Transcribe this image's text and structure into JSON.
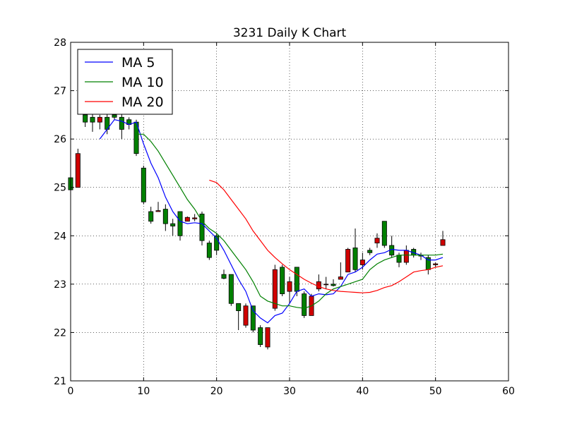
{
  "chart_data": {
    "type": "candlestick",
    "title": "3231 Daily K Chart",
    "xlabel": "",
    "ylabel": "",
    "xlim": [
      0,
      60
    ],
    "ylim": [
      21,
      28
    ],
    "x_ticks": [
      0,
      10,
      20,
      30,
      40,
      50,
      60
    ],
    "y_ticks": [
      21,
      22,
      23,
      24,
      25,
      26,
      27,
      28
    ],
    "grid": true,
    "legend_position": "top-left",
    "colors": {
      "up": "#d00000",
      "down": "#008000"
    },
    "candles": [
      {
        "x": 0,
        "open": 25.2,
        "high": 25.2,
        "low": 24.95,
        "close": 24.95
      },
      {
        "x": 1,
        "open": 25.0,
        "high": 25.8,
        "low": 25.0,
        "close": 25.7
      },
      {
        "x": 2,
        "open": 26.5,
        "high": 26.55,
        "low": 26.25,
        "close": 26.35
      },
      {
        "x": 3,
        "open": 26.45,
        "high": 26.6,
        "low": 26.15,
        "close": 26.35
      },
      {
        "x": 4,
        "open": 26.35,
        "high": 26.5,
        "low": 26.2,
        "close": 26.45
      },
      {
        "x": 5,
        "open": 26.45,
        "high": 26.55,
        "low": 26.1,
        "close": 26.2
      },
      {
        "x": 6,
        "open": 26.5,
        "high": 26.6,
        "low": 26.4,
        "close": 26.45
      },
      {
        "x": 7,
        "open": 26.45,
        "high": 26.55,
        "low": 26.0,
        "close": 26.2
      },
      {
        "x": 8,
        "open": 26.4,
        "high": 26.45,
        "low": 26.2,
        "close": 26.3
      },
      {
        "x": 9,
        "open": 26.35,
        "high": 26.4,
        "low": 25.65,
        "close": 25.7
      },
      {
        "x": 10,
        "open": 25.4,
        "high": 25.45,
        "low": 24.65,
        "close": 24.7
      },
      {
        "x": 11,
        "open": 24.5,
        "high": 24.6,
        "low": 24.25,
        "close": 24.3
      },
      {
        "x": 12,
        "open": 24.5,
        "high": 24.7,
        "low": 24.5,
        "close": 24.52
      },
      {
        "x": 13,
        "open": 24.55,
        "high": 24.65,
        "low": 24.1,
        "close": 24.25
      },
      {
        "x": 14,
        "open": 24.25,
        "high": 24.35,
        "low": 24.0,
        "close": 24.2
      },
      {
        "x": 15,
        "open": 24.5,
        "high": 24.5,
        "low": 23.9,
        "close": 24.0
      },
      {
        "x": 16,
        "open": 24.3,
        "high": 24.4,
        "low": 24.3,
        "close": 24.38
      },
      {
        "x": 17,
        "open": 24.35,
        "high": 24.45,
        "low": 24.3,
        "close": 24.37
      },
      {
        "x": 18,
        "open": 24.45,
        "high": 24.5,
        "low": 23.8,
        "close": 23.9
      },
      {
        "x": 19,
        "open": 23.85,
        "high": 23.9,
        "low": 23.5,
        "close": 23.55
      },
      {
        "x": 20,
        "open": 24.0,
        "high": 24.05,
        "low": 23.6,
        "close": 23.7
      },
      {
        "x": 21,
        "open": 23.2,
        "high": 23.3,
        "low": 23.1,
        "close": 23.12
      },
      {
        "x": 22,
        "open": 23.2,
        "high": 23.2,
        "low": 22.55,
        "close": 22.6
      },
      {
        "x": 23,
        "open": 22.6,
        "high": 22.6,
        "low": 22.05,
        "close": 22.45
      },
      {
        "x": 24,
        "open": 22.15,
        "high": 22.6,
        "low": 22.1,
        "close": 22.55
      },
      {
        "x": 25,
        "open": 22.55,
        "high": 22.55,
        "low": 22.0,
        "close": 22.05
      },
      {
        "x": 26,
        "open": 22.1,
        "high": 22.15,
        "low": 21.7,
        "close": 21.75
      },
      {
        "x": 27,
        "open": 21.7,
        "high": 22.1,
        "low": 21.65,
        "close": 22.1
      },
      {
        "x": 28,
        "open": 22.5,
        "high": 23.4,
        "low": 22.45,
        "close": 23.3
      },
      {
        "x": 29,
        "open": 23.35,
        "high": 23.4,
        "low": 22.75,
        "close": 22.8
      },
      {
        "x": 30,
        "open": 22.85,
        "high": 23.15,
        "low": 22.6,
        "close": 23.05
      },
      {
        "x": 31,
        "open": 23.35,
        "high": 23.35,
        "low": 22.75,
        "close": 22.85
      },
      {
        "x": 32,
        "open": 22.8,
        "high": 22.85,
        "low": 22.3,
        "close": 22.35
      },
      {
        "x": 33,
        "open": 22.35,
        "high": 22.8,
        "low": 22.35,
        "close": 22.75
      },
      {
        "x": 34,
        "open": 22.9,
        "high": 23.2,
        "low": 22.85,
        "close": 23.05
      },
      {
        "x": 35,
        "open": 23.0,
        "high": 23.15,
        "low": 22.9,
        "close": 23.0
      },
      {
        "x": 36,
        "open": 23.0,
        "high": 23.1,
        "low": 22.95,
        "close": 22.97
      },
      {
        "x": 37,
        "open": 23.1,
        "high": 23.45,
        "low": 23.1,
        "close": 23.15
      },
      {
        "x": 38,
        "open": 23.25,
        "high": 23.75,
        "low": 23.25,
        "close": 23.72
      },
      {
        "x": 39,
        "open": 23.75,
        "high": 24.15,
        "low": 23.25,
        "close": 23.3
      },
      {
        "x": 40,
        "open": 23.4,
        "high": 23.65,
        "low": 23.3,
        "close": 23.5
      },
      {
        "x": 41,
        "open": 23.7,
        "high": 23.75,
        "low": 23.6,
        "close": 23.65
      },
      {
        "x": 42,
        "open": 23.85,
        "high": 24.05,
        "low": 23.75,
        "close": 23.95
      },
      {
        "x": 43,
        "open": 24.3,
        "high": 24.3,
        "low": 23.75,
        "close": 23.8
      },
      {
        "x": 44,
        "open": 23.8,
        "high": 24.0,
        "low": 23.55,
        "close": 23.6
      },
      {
        "x": 45,
        "open": 23.6,
        "high": 23.65,
        "low": 23.35,
        "close": 23.45
      },
      {
        "x": 46,
        "open": 23.45,
        "high": 23.8,
        "low": 23.4,
        "close": 23.7
      },
      {
        "x": 47,
        "open": 23.72,
        "high": 23.75,
        "low": 23.55,
        "close": 23.6
      },
      {
        "x": 48,
        "open": 23.6,
        "high": 23.65,
        "low": 23.5,
        "close": 23.58
      },
      {
        "x": 49,
        "open": 23.55,
        "high": 23.6,
        "low": 23.2,
        "close": 23.3
      },
      {
        "x": 50,
        "open": 23.4,
        "high": 23.45,
        "low": 23.35,
        "close": 23.42
      },
      {
        "x": 51,
        "open": 23.8,
        "high": 24.1,
        "low": 23.8,
        "close": 23.92
      }
    ],
    "series": [
      {
        "name": "MA 5",
        "color": "#0000ff",
        "x": [
          4,
          5,
          6,
          7,
          8,
          9,
          10,
          11,
          12,
          13,
          14,
          15,
          16,
          17,
          18,
          19,
          20,
          21,
          22,
          23,
          24,
          25,
          26,
          27,
          28,
          29,
          30,
          31,
          32,
          33,
          34,
          35,
          36,
          37,
          38,
          39,
          40,
          41,
          42,
          43,
          44,
          45,
          46,
          47,
          48,
          49,
          50,
          51
        ],
        "y": [
          26.0,
          26.2,
          26.4,
          26.37,
          26.3,
          26.35,
          25.9,
          25.5,
          25.2,
          24.8,
          24.5,
          24.3,
          24.25,
          24.27,
          24.25,
          24.1,
          23.95,
          23.7,
          23.4,
          23.1,
          22.85,
          22.45,
          22.3,
          22.2,
          22.35,
          22.4,
          22.6,
          22.85,
          22.9,
          22.75,
          22.8,
          22.78,
          22.8,
          22.95,
          23.2,
          23.25,
          23.35,
          23.5,
          23.62,
          23.65,
          23.72,
          23.7,
          23.7,
          23.65,
          23.6,
          23.5,
          23.5,
          23.55
        ]
      },
      {
        "name": "MA 10",
        "color": "#008000",
        "x": [
          9,
          10,
          11,
          12,
          13,
          14,
          15,
          16,
          17,
          18,
          19,
          20,
          21,
          22,
          23,
          24,
          25,
          26,
          27,
          28,
          29,
          30,
          31,
          32,
          33,
          34,
          35,
          36,
          37,
          38,
          39,
          40,
          41,
          42,
          43,
          44,
          45,
          46,
          47,
          48,
          49,
          50,
          51
        ],
        "y": [
          26.1,
          26.1,
          25.95,
          25.75,
          25.5,
          25.25,
          25.0,
          24.75,
          24.55,
          24.3,
          24.15,
          24.05,
          23.9,
          23.7,
          23.5,
          23.3,
          23.05,
          22.75,
          22.65,
          22.6,
          22.55,
          22.55,
          22.52,
          22.5,
          22.55,
          22.65,
          22.8,
          22.9,
          22.95,
          23.0,
          23.05,
          23.1,
          23.3,
          23.42,
          23.5,
          23.55,
          23.6,
          23.6,
          23.6,
          23.6,
          23.6,
          23.6,
          23.62
        ]
      },
      {
        "name": "MA 20",
        "color": "#ff0000",
        "x": [
          19,
          20,
          21,
          22,
          23,
          24,
          25,
          26,
          27,
          28,
          29,
          30,
          31,
          32,
          33,
          34,
          35,
          36,
          37,
          38,
          39,
          40,
          41,
          42,
          43,
          44,
          45,
          46,
          47,
          48,
          49,
          50,
          51
        ],
        "y": [
          25.15,
          25.1,
          24.95,
          24.75,
          24.55,
          24.35,
          24.1,
          23.9,
          23.7,
          23.55,
          23.42,
          23.3,
          23.2,
          23.1,
          23.02,
          22.95,
          22.9,
          22.87,
          22.85,
          22.84,
          22.83,
          22.82,
          22.83,
          22.87,
          22.93,
          22.97,
          23.05,
          23.15,
          23.25,
          23.28,
          23.3,
          23.35,
          23.38
        ]
      }
    ]
  }
}
